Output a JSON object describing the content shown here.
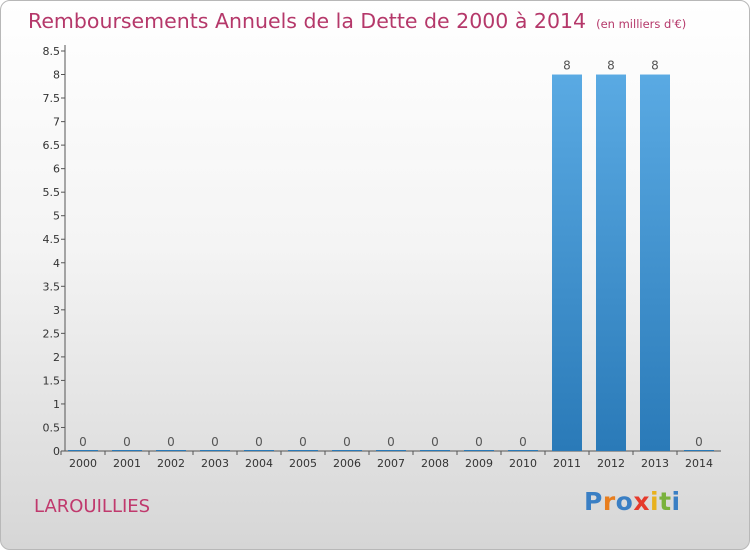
{
  "header": {
    "title": "Remboursements Annuels de la Dette de 2000 à 2014",
    "unit": "(en milliers d'€)"
  },
  "location": "LAROUILLIES",
  "logo": {
    "letters": [
      "P",
      "r",
      "o",
      "x",
      "i",
      "t",
      "i"
    ],
    "colors": [
      "#3a7fc4",
      "#e87e1e",
      "#3a7fc4",
      "#e53a2c",
      "#e8b11e",
      "#7ab23d",
      "#3a7fc4"
    ]
  },
  "colors": {
    "bar_light": "#5aaae3",
    "bar_dark": "#2a7ab8",
    "axis": "#555555",
    "title": "#b5386a"
  },
  "chart_data": {
    "type": "bar",
    "title": "Remboursements Annuels de la Dette de 2000 à 2014",
    "subtitle": "(en milliers d'€)",
    "categories": [
      "2000",
      "2001",
      "2002",
      "2003",
      "2004",
      "2005",
      "2006",
      "2007",
      "2008",
      "2009",
      "2010",
      "2011",
      "2012",
      "2013",
      "2014"
    ],
    "values": [
      0,
      0,
      0,
      0,
      0,
      0,
      0,
      0,
      0,
      0,
      0,
      8,
      8,
      8,
      0
    ],
    "data_labels": [
      "0",
      "0",
      "0",
      "0",
      "0",
      "0",
      "0",
      "0",
      "0",
      "0",
      "0",
      "8",
      "8",
      "8",
      "0"
    ],
    "ylim": [
      0,
      8.5
    ],
    "yticks": [
      {
        "value": 0,
        "label": "0"
      },
      {
        "value": 0.5,
        "label": "0.5"
      },
      {
        "value": 1,
        "label": "1"
      },
      {
        "value": 1.5,
        "label": "1.5"
      },
      {
        "value": 2,
        "label": "2"
      },
      {
        "value": 2.5,
        "label": "2.5"
      },
      {
        "value": 3,
        "label": "3"
      },
      {
        "value": 3.5,
        "label": "3.5"
      },
      {
        "value": 4,
        "label": "4"
      },
      {
        "value": 4.5,
        "label": "4.5"
      },
      {
        "value": 5,
        "label": "5"
      },
      {
        "value": 5.5,
        "label": "5.5"
      },
      {
        "value": 6,
        "label": "6"
      },
      {
        "value": 6.5,
        "label": "6.5"
      },
      {
        "value": 7,
        "label": "7"
      },
      {
        "value": 7.5,
        "label": "7.5"
      },
      {
        "value": 8,
        "label": "8"
      },
      {
        "value": 8.5,
        "label": "8.5"
      }
    ],
    "grid": false,
    "legend": "none"
  }
}
